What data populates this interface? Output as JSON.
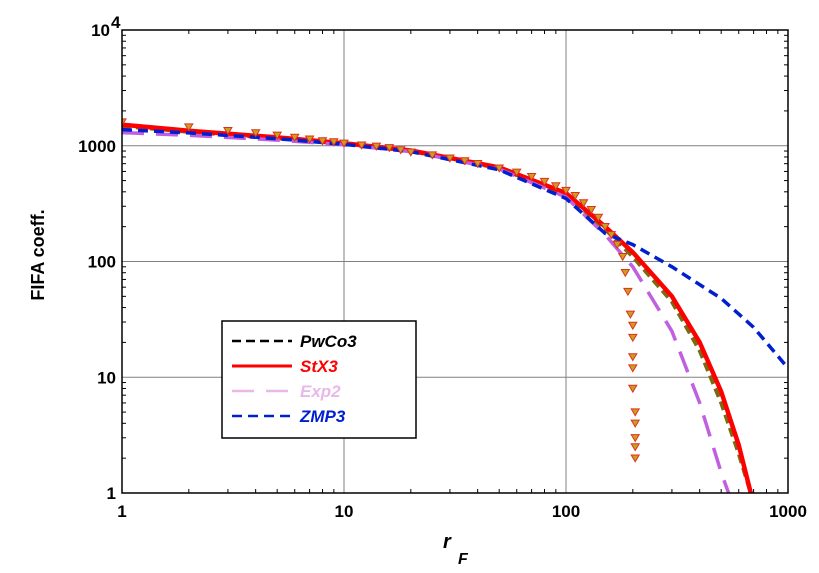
{
  "chart_data": {
    "type": "line",
    "title": "",
    "xlabel": {
      "main": "r",
      "subscript": "F"
    },
    "ylabel": "FIFA coeff.",
    "xscale": "log",
    "yscale": "log",
    "xlim": [
      1,
      1000
    ],
    "ylim": [
      1,
      10000
    ],
    "grid": true,
    "legend_position": "lower-left",
    "x_ticks": [
      {
        "value": 1,
        "label": "1"
      },
      {
        "value": 10,
        "label": "10"
      },
      {
        "value": 100,
        "label": "100"
      },
      {
        "value": 1000,
        "label": "1000"
      }
    ],
    "y_ticks": [
      {
        "value": 1,
        "label": "1",
        "exp": ""
      },
      {
        "value": 10,
        "label": "10",
        "exp": ""
      },
      {
        "value": 100,
        "label": "100",
        "exp": ""
      },
      {
        "value": 1000,
        "label": "1000",
        "exp": ""
      },
      {
        "value": 10000,
        "label": "10",
        "exp": "4"
      }
    ],
    "data_points": {
      "marker": "triangle-down",
      "color": "#c8a020",
      "edge_color": "#e0301e",
      "points": [
        [
          1,
          1600
        ],
        [
          2,
          1450
        ],
        [
          3,
          1350
        ],
        [
          4,
          1290
        ],
        [
          5,
          1230
        ],
        [
          6,
          1180
        ],
        [
          7,
          1140
        ],
        [
          8,
          1100
        ],
        [
          9,
          1080
        ],
        [
          10,
          1050
        ],
        [
          12,
          1010
        ],
        [
          14,
          990
        ],
        [
          16,
          960
        ],
        [
          18,
          920
        ],
        [
          20,
          880
        ],
        [
          25,
          830
        ],
        [
          30,
          780
        ],
        [
          35,
          740
        ],
        [
          40,
          700
        ],
        [
          50,
          640
        ],
        [
          60,
          590
        ],
        [
          70,
          540
        ],
        [
          80,
          490
        ],
        [
          90,
          450
        ],
        [
          100,
          410
        ],
        [
          110,
          370
        ],
        [
          120,
          320
        ],
        [
          130,
          280
        ],
        [
          140,
          240
        ],
        [
          150,
          200
        ],
        [
          160,
          170
        ],
        [
          170,
          140
        ],
        [
          180,
          110
        ],
        [
          185,
          80
        ],
        [
          190,
          55
        ],
        [
          195,
          35
        ],
        [
          200,
          28
        ],
        [
          200,
          22
        ],
        [
          200,
          15
        ],
        [
          200,
          12
        ],
        [
          200,
          8
        ],
        [
          205,
          5
        ],
        [
          205,
          4
        ],
        [
          205,
          3
        ],
        [
          205,
          2.5
        ],
        [
          205,
          2
        ]
      ]
    },
    "series": [
      {
        "name": "PwCo3",
        "color": "#000000",
        "style": "dash-short",
        "x": [
          1,
          2,
          5,
          10,
          20,
          50,
          100,
          150,
          200,
          300,
          400,
          500,
          600,
          680
        ],
        "y": [
          1480,
          1320,
          1160,
          1040,
          900,
          640,
          380,
          190,
          110,
          45,
          17,
          6,
          2.2,
          1
        ]
      },
      {
        "name": "StX3",
        "color": "#ff0000",
        "style": "solid",
        "x": [
          1,
          2,
          5,
          10,
          20,
          50,
          100,
          150,
          200,
          300,
          400,
          500,
          600,
          680
        ],
        "y": [
          1520,
          1350,
          1180,
          1050,
          910,
          650,
          390,
          200,
          120,
          50,
          20,
          7.5,
          2.6,
          1
        ]
      },
      {
        "name": "Exp2",
        "color": "#c060e0",
        "legend_color": "#e8b8e8",
        "style": "dash-long",
        "x": [
          1,
          2,
          5,
          10,
          20,
          50,
          100,
          150,
          200,
          300,
          400,
          500,
          540
        ],
        "y": [
          1300,
          1230,
          1120,
          1020,
          890,
          630,
          360,
          170,
          90,
          25,
          6,
          1.5,
          1
        ]
      },
      {
        "name": "ZMP3",
        "color": "#0020d0",
        "style": "dash-medium",
        "x": [
          1,
          2,
          5,
          10,
          20,
          50,
          100,
          150,
          200,
          300,
          500,
          700,
          1000
        ],
        "y": [
          1380,
          1290,
          1150,
          1030,
          890,
          620,
          350,
          175,
          140,
          90,
          48,
          27,
          12
        ]
      }
    ]
  }
}
